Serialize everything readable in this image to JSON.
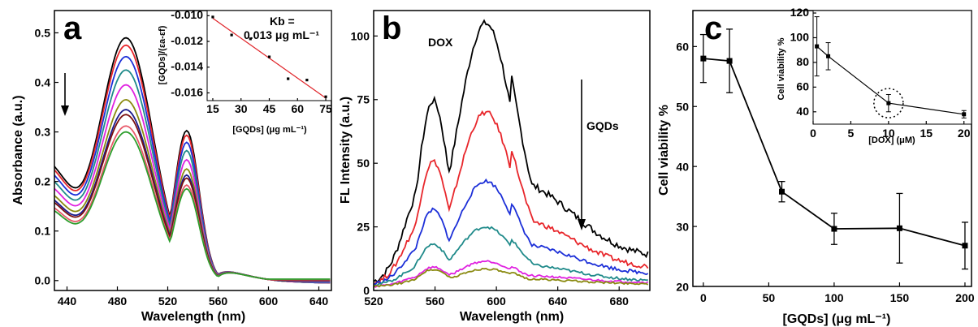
{
  "panels": [
    {
      "letter": "a",
      "chart_data": {
        "type": "line",
        "xlabel": "Wavelength (nm)",
        "ylabel": "Absorbance (a.u.)",
        "xlim": [
          430,
          650
        ],
        "ylim": [
          -0.02,
          0.545
        ],
        "xticks": [
          440,
          480,
          520,
          560,
          600,
          640
        ],
        "yticks": [
          0.0,
          0.1,
          0.2,
          0.3,
          0.4,
          0.5
        ],
        "ytick_labels": [
          "0.0",
          "0.1",
          "0.2",
          "0.3",
          "0.4",
          "0.5"
        ],
        "series": [
          {
            "color": "#000000",
            "peak": 0.49
          },
          {
            "color": "#e8262b",
            "peak": 0.475
          },
          {
            "color": "#1c2fd8",
            "peak": 0.452
          },
          {
            "color": "#1f8a8a",
            "peak": 0.425
          },
          {
            "color": "#e022e0",
            "peak": 0.395
          },
          {
            "color": "#8a8a10",
            "peak": 0.365
          },
          {
            "color": "#1a1a8c",
            "peak": 0.345
          },
          {
            "color": "#7a1010",
            "peak": 0.335
          },
          {
            "color": "#e85a6a",
            "peak": 0.312
          },
          {
            "color": "#2c9e2c",
            "peak": 0.3
          }
        ],
        "arrow": true
      },
      "inset": {
        "type": "scatter",
        "xlabel": "[GQDs] (μg mL⁻¹)",
        "ylabel": "[GQDs]/(εa-εf)",
        "xlim": [
          12,
          78
        ],
        "ylim": [
          -0.0166,
          -0.0096
        ],
        "xticks": [
          15,
          30,
          45,
          60,
          75
        ],
        "yticks": [
          -0.01,
          -0.012,
          -0.014,
          -0.016
        ],
        "ytick_labels": [
          "-0.010",
          "-0.012",
          "-0.014",
          "-0.016"
        ],
        "x": [
          15,
          25,
          35,
          45,
          55,
          65,
          75
        ],
        "y": [
          -0.0101,
          -0.0115,
          -0.0118,
          -0.0132,
          -0.0149,
          -0.015,
          -0.0163
        ],
        "fit": {
          "x": [
            15,
            75
          ],
          "y": [
            -0.0102,
            -0.0164
          ]
        }
      },
      "annotation_line1": "Kb =",
      "annotation_line2": "0.013 μg mL⁻¹"
    },
    {
      "letter": "b",
      "chart_data": {
        "type": "line",
        "xlabel": "Wavelength (nm)",
        "ylabel": "FL Intensity (a.u.)",
        "xlim": [
          520,
          700
        ],
        "ylim": [
          0,
          110
        ],
        "xticks": [
          520,
          560,
          600,
          640,
          680
        ],
        "yticks": [
          0,
          25,
          50,
          75,
          100
        ],
        "ytick_labels": [
          "0",
          "25",
          "50",
          "75",
          "100"
        ],
        "series": [
          {
            "color": "#000000",
            "shoulder": 76,
            "peak": 103,
            "tail": 10,
            "base": 2
          },
          {
            "color": "#e8262b",
            "shoulder": 51,
            "peak": 68,
            "tail": 6,
            "base": 2
          },
          {
            "color": "#1c2fd8",
            "shoulder": 31,
            "peak": 41,
            "tail": 4,
            "base": 2
          },
          {
            "color": "#1f8a8a",
            "shoulder": 17,
            "peak": 23,
            "tail": 1.5,
            "base": 2
          },
          {
            "color": "#e022e0",
            "shoulder": 8,
            "peak": 10,
            "tail": 1.5,
            "base": 1.5
          },
          {
            "color": "#8a8a10",
            "shoulder": 7,
            "peak": 7,
            "tail": 1,
            "base": 1.5
          }
        ]
      },
      "label_dox": "DOX",
      "label_gqds": "GQDs"
    },
    {
      "letter": "c",
      "chart_data": {
        "type": "line",
        "xlabel": "[GQDs] (μg mL⁻¹)",
        "ylabel": "Cell viability %",
        "xlim": [
          -8,
          205
        ],
        "ylim": [
          20,
          66
        ],
        "xticks": [
          0,
          50,
          100,
          150,
          200
        ],
        "yticks": [
          20,
          30,
          40,
          50,
          60
        ],
        "ytick_labels": [
          "20",
          "30",
          "40",
          "50",
          "60"
        ],
        "x": [
          0,
          20,
          60,
          100,
          150,
          200
        ],
        "y": [
          58,
          57.6,
          35.8,
          29.6,
          29.7,
          26.8
        ],
        "err": [
          4,
          5.3,
          1.7,
          2.6,
          5.8,
          3.9
        ]
      },
      "inset": {
        "type": "line",
        "xlabel": "[DOX] (μM)",
        "ylabel": "Cell viability %",
        "xlim": [
          0,
          21
        ],
        "ylim": [
          30,
          122
        ],
        "xticks": [
          0,
          5,
          10,
          15,
          20
        ],
        "yticks": [
          40,
          60,
          80,
          100,
          120
        ],
        "ytick_labels": [
          "40",
          "60",
          "80",
          "100",
          "120"
        ],
        "x": [
          0.5,
          2,
          10,
          20
        ],
        "y": [
          93,
          85,
          47,
          38
        ],
        "err": [
          24,
          11,
          7,
          3
        ],
        "circle_index": 2
      }
    }
  ]
}
